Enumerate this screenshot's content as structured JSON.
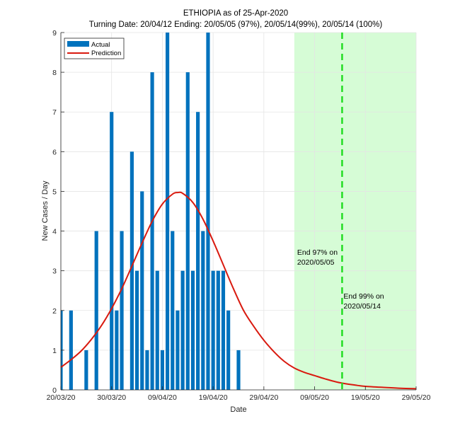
{
  "chart_data": {
    "type": "bar",
    "title": "ETHIOPIA as of 25-Apr-2020",
    "subtitle": "Turning Date: 20/04/12  Ending: 20/05/05 (97%), 20/05/14(99%), 20/05/14 (100%)",
    "xlabel": "Date",
    "ylabel": "New Cases / Day",
    "x_start_date": "20/03/20",
    "x_range_days": [
      0,
      70
    ],
    "ylim": [
      0,
      9
    ],
    "yticks": [
      0,
      1,
      2,
      3,
      4,
      5,
      6,
      7,
      8,
      9
    ],
    "xticks": [
      {
        "day": 0,
        "label": "20/03/20"
      },
      {
        "day": 10,
        "label": "30/03/20"
      },
      {
        "day": 20,
        "label": "09/04/20"
      },
      {
        "day": 30,
        "label": "19/04/20"
      },
      {
        "day": 40,
        "label": "29/04/20"
      },
      {
        "day": 50,
        "label": "09/05/20"
      },
      {
        "day": 60,
        "label": "19/05/20"
      },
      {
        "day": 70,
        "label": "29/05/20"
      }
    ],
    "grid": true,
    "legend": {
      "placement": "top-left",
      "entries": [
        "Actual",
        "Prediction"
      ]
    },
    "series": [
      {
        "name": "Actual",
        "type": "bar",
        "color": "#0072BD",
        "days": [
          0,
          1,
          2,
          3,
          4,
          5,
          6,
          7,
          8,
          9,
          10,
          11,
          12,
          13,
          14,
          15,
          16,
          17,
          18,
          19,
          20,
          21,
          22,
          23,
          24,
          25,
          26,
          27,
          28,
          29,
          30,
          31,
          32,
          33,
          34,
          35
        ],
        "values": [
          2,
          0,
          2,
          0,
          0,
          1,
          0,
          4,
          0,
          0,
          7,
          2,
          4,
          0,
          6,
          3,
          5,
          1,
          8,
          3,
          1,
          9,
          4,
          2,
          3,
          8,
          3,
          7,
          4,
          9,
          3,
          3,
          3,
          2,
          0,
          1
        ]
      },
      {
        "name": "Prediction",
        "type": "line",
        "color": "#D91A0F",
        "days": [
          0,
          2,
          4,
          6,
          8,
          10,
          12,
          14,
          16,
          18,
          20,
          22,
          23,
          24,
          26,
          28,
          30,
          32,
          34,
          36,
          38,
          40,
          42,
          44,
          46,
          48,
          50,
          52,
          55,
          58,
          60,
          64,
          67,
          70
        ],
        "values": [
          0.57,
          0.76,
          0.98,
          1.27,
          1.62,
          2.05,
          2.55,
          3.12,
          3.7,
          4.25,
          4.68,
          4.93,
          4.97,
          4.95,
          4.72,
          4.3,
          3.75,
          3.15,
          2.55,
          2.0,
          1.6,
          1.25,
          0.96,
          0.72,
          0.55,
          0.44,
          0.36,
          0.28,
          0.18,
          0.12,
          0.09,
          0.06,
          0.04,
          0.03
        ]
      }
    ],
    "shaded_region": {
      "from_day": 46,
      "to_day": 70,
      "color": "#d6fcd6",
      "meaning": "after 97% end date"
    },
    "vertical_line": {
      "day": 55,
      "style": "dashed",
      "color": "#22dd22"
    },
    "annotations": [
      {
        "day": 46,
        "value": 3.4,
        "lines": [
          "End 97% on",
          "2020/05/05"
        ]
      },
      {
        "day": 55,
        "value": 2.3,
        "lines": [
          "End 99% on",
          "2020/05/14"
        ]
      }
    ]
  }
}
